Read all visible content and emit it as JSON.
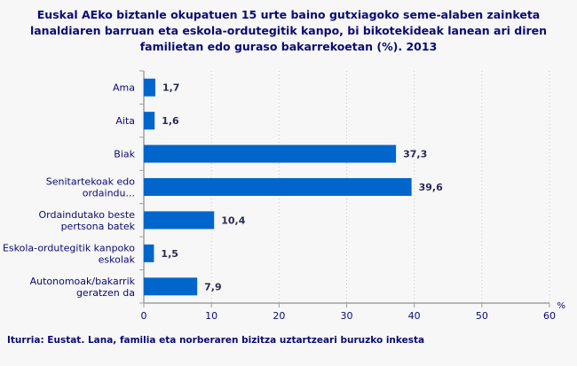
{
  "chart_data": {
    "type": "bar",
    "orientation": "horizontal",
    "title": "Euskal AEko biztanle okupatuen 15 urte baino gutxiagoko seme-alaben zainketa lanaldiaren barruan eta eskola-ordutegitik kanpo, bi bikotekideak lanean ari diren familietan edo guraso bakarrekoetan (%). 2013",
    "categories": [
      "Ama",
      "Aita",
      "Biak",
      "Senitartekoak edo ordaindu...",
      "Ordaindutako beste pertsona batek",
      "Eskola-ordutegitik kanpoko eskolak",
      "Autonomoak/bakarrik geratzen da"
    ],
    "category_lines": [
      [
        "Ama"
      ],
      [
        "Aita"
      ],
      [
        "Biak"
      ],
      [
        "Senitartekoak edo",
        "ordaindu..."
      ],
      [
        "Ordaindutako beste",
        "pertsona batek"
      ],
      [
        "Eskola-ordutegitik kanpoko",
        "eskolak"
      ],
      [
        "Autonomoak/bakarrik",
        "geratzen da"
      ]
    ],
    "values": [
      1.7,
      1.6,
      37.3,
      39.6,
      10.4,
      1.5,
      7.9
    ],
    "value_labels": [
      "1,7",
      "1,6",
      "37,3",
      "39,6",
      "10,4",
      "1,5",
      "7,9"
    ],
    "xlabel": "%",
    "xlim": [
      0,
      60
    ],
    "xticks": [
      0,
      10,
      20,
      30,
      40,
      50,
      60
    ],
    "grid": true,
    "source": "Iturria: Eustat. Lana, familia eta norberaren bizitza uztartzeari buruzko inkesta",
    "colors": {
      "bar": "#0066cc",
      "text": "#0a0a78",
      "axis": "#a0a0a0",
      "grid": "#d0d0d0"
    }
  }
}
